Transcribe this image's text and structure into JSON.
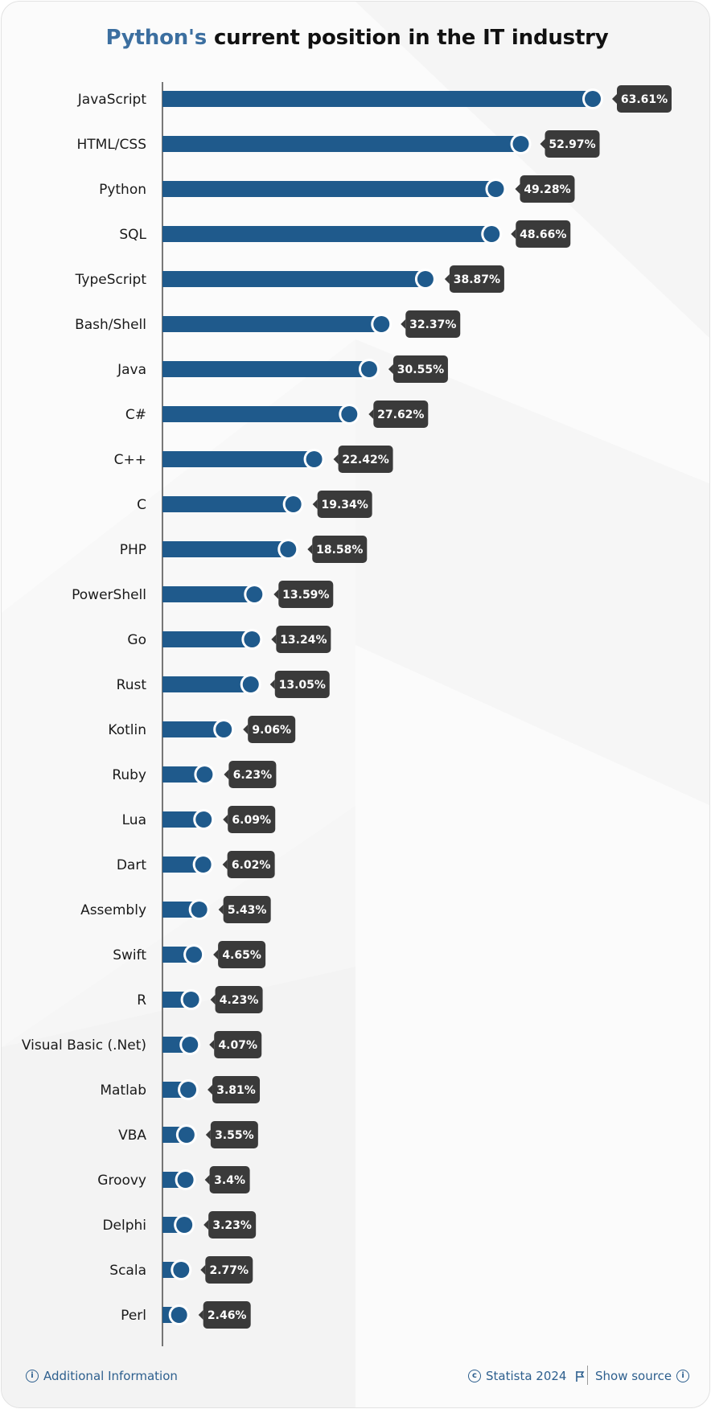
{
  "title": {
    "highlight": "Python's",
    "rest": "current position in the IT industry"
  },
  "colors": {
    "bar": "#1f5a8c",
    "dot": "#1f5a8c",
    "label_bg": "#3a3a3a",
    "title_accent": "#3c6fa0",
    "footer_text": "#2d5f8e"
  },
  "chart_data": {
    "type": "bar",
    "orientation": "horizontal",
    "categories": [
      "JavaScript",
      "HTML/CSS",
      "Python",
      "SQL",
      "TypeScript",
      "Bash/Shell",
      "Java",
      "C#",
      "C++",
      "C",
      "PHP",
      "PowerShell",
      "Go",
      "Rust",
      "Kotlin",
      "Ruby",
      "Lua",
      "Dart",
      "Assembly",
      "Swift",
      "R",
      "Visual Basic (.Net)",
      "Matlab",
      "VBA",
      "Groovy",
      "Delphi",
      "Scala",
      "Perl"
    ],
    "values": [
      63.61,
      52.97,
      49.28,
      48.66,
      38.87,
      32.37,
      30.55,
      27.62,
      22.42,
      19.34,
      18.58,
      13.59,
      13.24,
      13.05,
      9.06,
      6.23,
      6.09,
      6.02,
      5.43,
      4.65,
      4.23,
      4.07,
      3.81,
      3.55,
      3.4,
      3.23,
      2.77,
      2.46
    ],
    "value_labels": [
      "63.61%",
      "52.97%",
      "49.28%",
      "48.66%",
      "38.87%",
      "32.37%",
      "30.55%",
      "27.62%",
      "22.42%",
      "19.34%",
      "18.58%",
      "13.59%",
      "13.24%",
      "13.05%",
      "9.06%",
      "6.23%",
      "6.09%",
      "6.02%",
      "5.43%",
      "4.65%",
      "4.23%",
      "4.07%",
      "3.81%",
      "3.55%",
      "3.4%",
      "3.23%",
      "2.77%",
      "2.46%"
    ],
    "unit": "%",
    "xlim": [
      0,
      70
    ],
    "grid": false
  },
  "footer": {
    "additional_info": "Additional Information",
    "copyright": "Statista 2024",
    "show_source": "Show source",
    "info_icon": "info-icon",
    "copyright_icon": "copyright-icon",
    "flag_icon": "flag-icon"
  }
}
